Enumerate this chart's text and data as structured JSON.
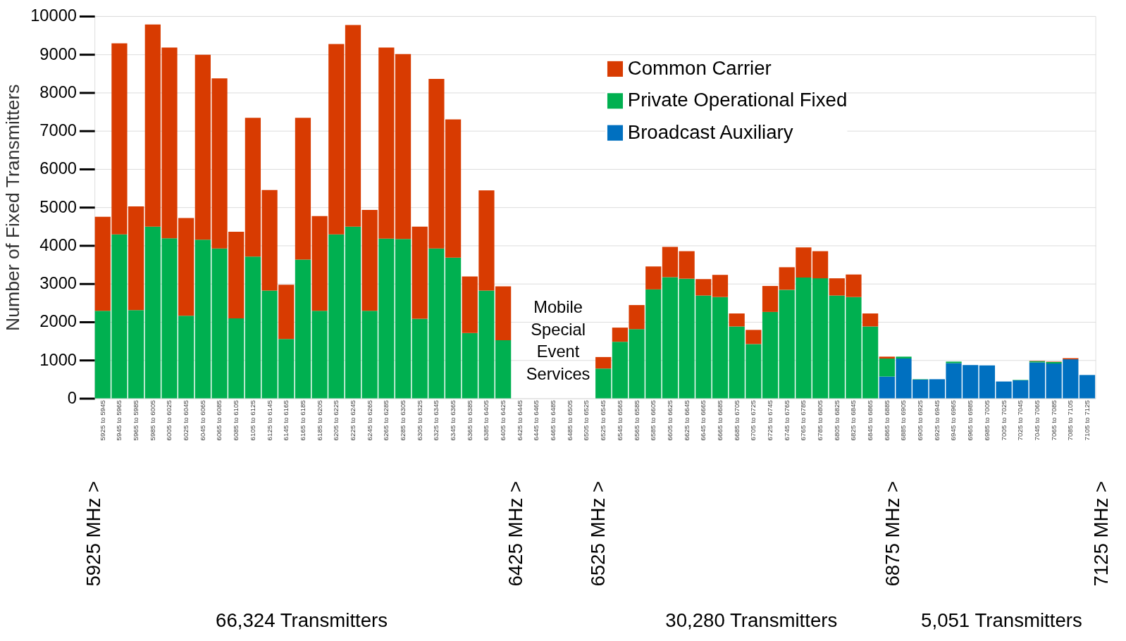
{
  "chart_data": {
    "type": "bar",
    "stacked": true,
    "ylabel": "Number of Fixed Transmitters",
    "categories": [
      "5925 to 5945",
      "5945 to 5965",
      "5965 to 5985",
      "5985 to 6005",
      "6005 to 6025",
      "6025 to 6045",
      "6045 to 6065",
      "6065 to 6085",
      "6085 to 6105",
      "6105 to 6125",
      "6125 to 6145",
      "6145 to 6165",
      "6165 to 6185",
      "6185 to 6205",
      "6205 to 6225",
      "6225 to 6245",
      "6245 to 6265",
      "6265 to 6285",
      "6285 to 6305",
      "6305 to 6325",
      "6325 to 6345",
      "6345 to 6365",
      "6365 to 6385",
      "6385 to 6405",
      "6405 to 6425",
      "6425 to 6445",
      "6445 to 6465",
      "6465 to 6485",
      "6485 to 6505",
      "6505 to 6525",
      "6525 to 6545",
      "6545 to 6565",
      "6565 to 6585",
      "6585 to 6605",
      "6605 to 6625",
      "6625 to 6645",
      "6645 to 6665",
      "6665 to 6685",
      "6685 to 6705",
      "6705 to 6725",
      "6725 to 6745",
      "6745 to 6765",
      "6765 to 6785",
      "6785 to 6805",
      "6805 to 6825",
      "6825 to 6845",
      "6845 to 6865",
      "6865 to 6885",
      "6885 to 6905",
      "6905 to 6925",
      "6925 to 6945",
      "6945 to 6965",
      "6965 to 6985",
      "6985 to 7005",
      "7005 to 7025",
      "7025 to 7045",
      "7045 to 7065",
      "7065 to 7085",
      "7085 to 7105",
      "7105 to 7125"
    ],
    "series": [
      {
        "name": "Broadcast Auxiliary",
        "color": "#0070c0",
        "values": [
          0,
          0,
          0,
          0,
          0,
          0,
          0,
          0,
          0,
          0,
          0,
          0,
          0,
          0,
          0,
          0,
          0,
          0,
          0,
          0,
          0,
          0,
          0,
          0,
          0,
          0,
          0,
          0,
          0,
          0,
          0,
          0,
          0,
          0,
          0,
          0,
          0,
          0,
          0,
          0,
          0,
          0,
          0,
          0,
          0,
          0,
          0,
          570,
          1040,
          490,
          500,
          920,
          870,
          860,
          440,
          470,
          940,
          910,
          1020,
          610
        ]
      },
      {
        "name": "Private Operational Fixed",
        "color": "#00b050",
        "values": [
          2290,
          4290,
          2310,
          4490,
          4190,
          2160,
          4150,
          3920,
          2090,
          3710,
          2820,
          1550,
          3630,
          2290,
          4290,
          4490,
          2290,
          4180,
          4170,
          2080,
          3920,
          3680,
          1710,
          2820,
          1520,
          0,
          0,
          0,
          0,
          0,
          780,
          1480,
          1810,
          2850,
          3170,
          3130,
          2690,
          2650,
          1880,
          1420,
          2260,
          2840,
          3160,
          3140,
          2690,
          2650,
          1880,
          470,
          50,
          10,
          null,
          40,
          0,
          0,
          0,
          10,
          30,
          40,
          0,
          null
        ]
      },
      {
        "name": "Common Carrier",
        "color": "#d83b01",
        "values": [
          2460,
          5000,
          2710,
          5290,
          4990,
          2560,
          4840,
          4450,
          2270,
          3630,
          2630,
          1420,
          3710,
          2480,
          4980,
          5280,
          2640,
          5000,
          4840,
          2410,
          4440,
          3620,
          1480,
          2620,
          1410,
          0,
          0,
          0,
          0,
          0,
          300,
          370,
          630,
          600,
          790,
          720,
          430,
          580,
          340,
          370,
          680,
          590,
          790,
          710,
          450,
          590,
          340,
          50,
          0,
          0,
          0,
          null,
          0,
          0,
          0,
          0,
          10,
          10,
          30,
          0
        ]
      }
    ],
    "ylim": [
      0,
      10000
    ],
    "yticks": [
      0,
      1000,
      2000,
      3000,
      4000,
      5000,
      6000,
      7000,
      8000,
      9000,
      10000
    ],
    "grid": "y",
    "legend": "top right",
    "annotations": [
      "Mobile Special Event Services",
      "5925 MHz >",
      "6425 MHz >",
      "6525 MHz >",
      "6875 MHz >",
      "7125 MHz >",
      "66,324 Transmitters",
      "30,280 Transmitters",
      "5,051 Transmitters"
    ]
  }
}
